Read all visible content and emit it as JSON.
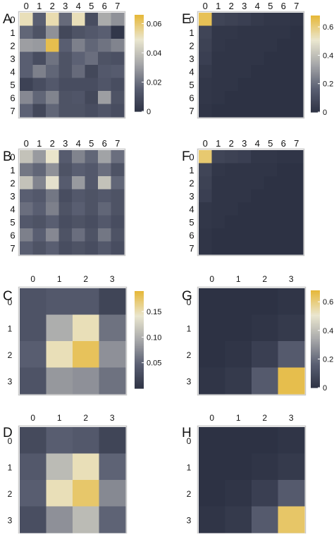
{
  "figure": {
    "colormap": [
      "#2d3244",
      "#5a5f72",
      "#a6a7a9",
      "#eae6cf",
      "#e6b93c"
    ]
  },
  "chart_data": [
    {
      "type": "heatmap",
      "panel_label": "A",
      "row_labels": [
        "0",
        "1",
        "2",
        "3",
        "4",
        "5",
        "6",
        "7"
      ],
      "col_labels": [
        "0",
        "1",
        "2",
        "3",
        "4",
        "5",
        "6",
        "7"
      ],
      "vmin": 0,
      "vmax": 0.066,
      "colorbar_ticks": [
        0,
        0.02,
        0.04,
        0.06
      ],
      "colorbar_labels": [
        "0",
        "0.02",
        "0.04",
        "0.06"
      ],
      "values": [
        [
          0.052,
          0.016,
          0.053,
          0.019,
          0.052,
          0.01,
          0.034,
          0.028
        ],
        [
          0.018,
          0.012,
          0.028,
          0.008,
          0.012,
          0.014,
          0.016,
          0.002
        ],
        [
          0.031,
          0.03,
          0.064,
          0.016,
          0.024,
          0.018,
          0.021,
          0.025
        ],
        [
          0.016,
          0.01,
          0.021,
          0.012,
          0.017,
          0.02,
          0.012,
          0.011
        ],
        [
          0.016,
          0.024,
          0.018,
          0.012,
          0.019,
          0.008,
          0.014,
          0.015
        ],
        [
          0.006,
          0.01,
          0.014,
          0.01,
          0.01,
          0.01,
          0.013,
          0.01
        ],
        [
          0.026,
          0.018,
          0.025,
          0.012,
          0.013,
          0.008,
          0.031,
          0.012
        ],
        [
          0.017,
          0.008,
          0.018,
          0.012,
          0.012,
          0.01,
          0.013,
          0.01
        ]
      ]
    },
    {
      "type": "heatmap",
      "panel_label": "B",
      "row_labels": [
        "0",
        "1",
        "2",
        "3",
        "4",
        "5",
        "6",
        "7"
      ],
      "col_labels": [
        "0",
        "1",
        "2",
        "3",
        "4",
        "5",
        "6",
        "7"
      ],
      "vmin": 0,
      "vmax": 0.066,
      "colorbar_ticks": [],
      "colorbar_labels": [],
      "values": [
        [
          0.04,
          0.03,
          0.05,
          0.015,
          0.025,
          0.018,
          0.032,
          0.02
        ],
        [
          0.022,
          0.018,
          0.028,
          0.012,
          0.016,
          0.014,
          0.02,
          0.012
        ],
        [
          0.04,
          0.025,
          0.048,
          0.015,
          0.03,
          0.014,
          0.04,
          0.018
        ],
        [
          0.016,
          0.014,
          0.022,
          0.01,
          0.014,
          0.012,
          0.014,
          0.012
        ],
        [
          0.02,
          0.016,
          0.024,
          0.012,
          0.016,
          0.012,
          0.018,
          0.012
        ],
        [
          0.014,
          0.012,
          0.016,
          0.01,
          0.012,
          0.01,
          0.014,
          0.01
        ],
        [
          0.024,
          0.016,
          0.026,
          0.012,
          0.02,
          0.012,
          0.022,
          0.012
        ],
        [
          0.016,
          0.012,
          0.016,
          0.01,
          0.012,
          0.01,
          0.014,
          0.01
        ]
      ]
    },
    {
      "type": "heatmap",
      "panel_label": "C",
      "row_labels": [
        "0",
        "1",
        "2",
        "3"
      ],
      "col_labels": [
        "0",
        "1",
        "2",
        "3"
      ],
      "vmin": 0,
      "vmax": 0.19,
      "colorbar_ticks": [
        0.05,
        0.1,
        0.15
      ],
      "colorbar_labels": [
        "0.05",
        "0.10",
        "0.15"
      ],
      "values": [
        [
          0.035,
          0.04,
          0.04,
          0.02
        ],
        [
          0.035,
          0.1,
          0.15,
          0.06
        ],
        [
          0.045,
          0.15,
          0.18,
          0.08
        ],
        [
          0.035,
          0.085,
          0.08,
          0.06
        ]
      ]
    },
    {
      "type": "heatmap",
      "panel_label": "D",
      "row_labels": [
        "0",
        "1",
        "2",
        "3"
      ],
      "col_labels": [
        "0",
        "1",
        "2",
        "3"
      ],
      "vmin": 0,
      "vmax": 0.19,
      "colorbar_ticks": [],
      "colorbar_labels": [],
      "values": [
        [
          0.025,
          0.045,
          0.04,
          0.02
        ],
        [
          0.04,
          0.11,
          0.15,
          0.05
        ],
        [
          0.045,
          0.15,
          0.175,
          0.075
        ],
        [
          0.03,
          0.08,
          0.11,
          0.05
        ]
      ]
    },
    {
      "type": "heatmap",
      "panel_label": "E",
      "row_labels": [
        "0",
        "1",
        "2",
        "3",
        "4",
        "5",
        "6",
        "7"
      ],
      "col_labels": [
        "0",
        "1",
        "2",
        "3",
        "4",
        "5",
        "6",
        "7"
      ],
      "vmin": 0,
      "vmax": 0.68,
      "colorbar_ticks": [
        0,
        0.2,
        0.4,
        0.6
      ],
      "colorbar_labels": [
        "0",
        "0.2",
        "0.4",
        "0.6"
      ],
      "values": [
        [
          0.65,
          0.07,
          0.06,
          0.05,
          0.03,
          0.02,
          0.02,
          0.01
        ],
        [
          0.07,
          0.02,
          0.02,
          0.01,
          0.01,
          0.01,
          0.01,
          0.0
        ],
        [
          0.06,
          0.02,
          0.01,
          0.01,
          0.01,
          0.01,
          0.0,
          0.0
        ],
        [
          0.05,
          0.01,
          0.01,
          0.01,
          0.01,
          0.0,
          0.0,
          0.0
        ],
        [
          0.03,
          0.01,
          0.01,
          0.01,
          0.0,
          0.0,
          0.0,
          0.0
        ],
        [
          0.02,
          0.01,
          0.01,
          0.0,
          0.0,
          0.0,
          0.0,
          0.0
        ],
        [
          0.02,
          0.01,
          0.0,
          0.0,
          0.0,
          0.0,
          0.0,
          0.0
        ],
        [
          0.01,
          0.0,
          0.0,
          0.0,
          0.0,
          0.0,
          0.0,
          0.0
        ]
      ]
    },
    {
      "type": "heatmap",
      "panel_label": "F",
      "row_labels": [
        "0",
        "1",
        "2",
        "3",
        "4",
        "5",
        "6",
        "7"
      ],
      "col_labels": [
        "0",
        "1",
        "2",
        "3",
        "4",
        "5",
        "6",
        "7"
      ],
      "vmin": 0,
      "vmax": 0.68,
      "colorbar_ticks": [],
      "colorbar_labels": [],
      "values": [
        [
          0.62,
          0.07,
          0.06,
          0.05,
          0.02,
          0.02,
          0.01,
          0.01
        ],
        [
          0.07,
          0.02,
          0.01,
          0.01,
          0.01,
          0.01,
          0.0,
          0.0
        ],
        [
          0.06,
          0.01,
          0.01,
          0.01,
          0.01,
          0.0,
          0.0,
          0.0
        ],
        [
          0.05,
          0.01,
          0.01,
          0.01,
          0.0,
          0.0,
          0.0,
          0.0
        ],
        [
          0.02,
          0.01,
          0.01,
          0.0,
          0.0,
          0.0,
          0.0,
          0.0
        ],
        [
          0.02,
          0.01,
          0.0,
          0.0,
          0.0,
          0.0,
          0.0,
          0.0
        ],
        [
          0.01,
          0.0,
          0.0,
          0.0,
          0.0,
          0.0,
          0.0,
          0.0
        ],
        [
          0.01,
          0.0,
          0.0,
          0.0,
          0.0,
          0.0,
          0.0,
          0.0
        ]
      ]
    },
    {
      "type": "heatmap",
      "panel_label": "G",
      "row_labels": [
        "0",
        "1",
        "2",
        "3"
      ],
      "col_labels": [
        "0",
        "1",
        "2",
        "3"
      ],
      "vmin": 0,
      "vmax": 0.68,
      "colorbar_ticks": [
        0,
        0.2,
        0.4,
        0.6
      ],
      "colorbar_labels": [
        "0",
        "0.2",
        "0.4",
        "0.6"
      ],
      "values": [
        [
          0.0,
          0.0,
          0.0,
          0.01
        ],
        [
          0.0,
          0.0,
          0.01,
          0.03
        ],
        [
          0.0,
          0.01,
          0.05,
          0.15
        ],
        [
          0.01,
          0.03,
          0.15,
          0.66
        ]
      ]
    },
    {
      "type": "heatmap",
      "panel_label": "H",
      "row_labels": [
        "0",
        "1",
        "2",
        "3"
      ],
      "col_labels": [
        "0",
        "1",
        "2",
        "3"
      ],
      "vmin": 0,
      "vmax": 0.68,
      "colorbar_ticks": [],
      "colorbar_labels": [],
      "values": [
        [
          0.0,
          0.0,
          0.0,
          0.01
        ],
        [
          0.0,
          0.0,
          0.01,
          0.03
        ],
        [
          0.0,
          0.01,
          0.05,
          0.15
        ],
        [
          0.01,
          0.03,
          0.15,
          0.63
        ]
      ]
    }
  ]
}
